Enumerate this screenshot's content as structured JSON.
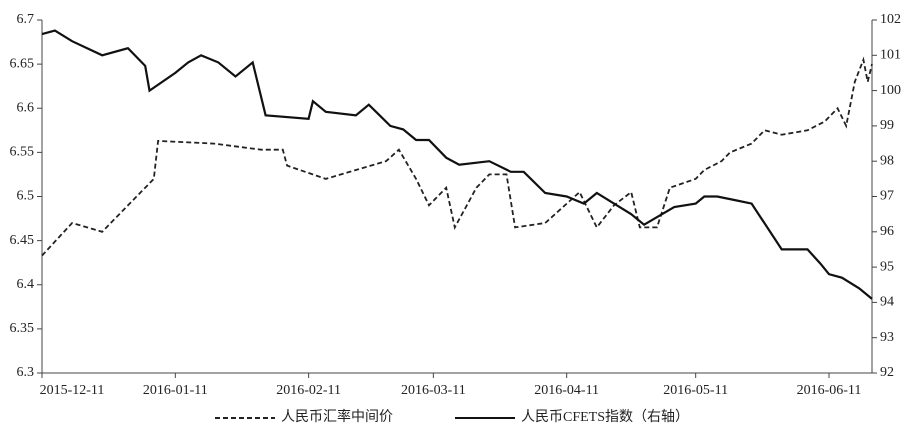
{
  "chart_data": {
    "type": "line",
    "xlim": [
      "2015-12-11",
      "2016-06-21"
    ],
    "xticks": [
      "2015-12-11",
      "2016-01-11",
      "2016-02-11",
      "2016-03-11",
      "2016-04-11",
      "2016-05-11",
      "2016-06-11"
    ],
    "ylim": [
      6.3,
      6.7
    ],
    "yticks": [
      6.3,
      6.35,
      6.4,
      6.45,
      6.5,
      6.55,
      6.6,
      6.65,
      6.7
    ],
    "y2lim": [
      92,
      102
    ],
    "y2ticks": [
      92,
      93,
      94,
      95,
      96,
      97,
      98,
      99,
      100,
      101,
      102
    ],
    "legend": "bottom",
    "series": [
      {
        "name": "人民币汇率中间价",
        "color": "#222222",
        "dash": true,
        "x": [
          "2015-12-11",
          "2015-12-18",
          "2015-12-25",
          "2015-12-31",
          "2016-01-06",
          "2016-01-07",
          "2016-01-20",
          "2016-01-31",
          "2016-02-05",
          "2016-02-06",
          "2016-02-15",
          "2016-02-22",
          "2016-02-29",
          "2016-03-03",
          "2016-03-07",
          "2016-03-10",
          "2016-03-14",
          "2016-03-16",
          "2016-03-21",
          "2016-03-24",
          "2016-03-28",
          "2016-03-30",
          "2016-04-06",
          "2016-04-14",
          "2016-04-18",
          "2016-04-22",
          "2016-04-26",
          "2016-04-28",
          "2016-05-02",
          "2016-05-05",
          "2016-05-11",
          "2016-05-13",
          "2016-05-17",
          "2016-05-19",
          "2016-05-24",
          "2016-05-27",
          "2016-05-31",
          "2016-06-06",
          "2016-06-10",
          "2016-06-13",
          "2016-06-15",
          "2016-06-17",
          "2016-06-19",
          "2016-06-20",
          "2016-06-21"
        ],
        "values": [
          6.433,
          6.47,
          6.46,
          6.49,
          6.52,
          6.563,
          6.56,
          6.553,
          6.553,
          6.535,
          6.52,
          6.53,
          6.54,
          6.553,
          6.52,
          6.49,
          6.51,
          6.465,
          6.51,
          6.525,
          6.525,
          6.465,
          6.47,
          6.505,
          6.465,
          6.49,
          6.505,
          6.465,
          6.465,
          6.51,
          6.52,
          6.53,
          6.54,
          6.55,
          6.56,
          6.575,
          6.57,
          6.575,
          6.585,
          6.6,
          6.58,
          6.63,
          6.655,
          6.63,
          6.65
        ]
      },
      {
        "name": "人民币CFETS指数（右轴）",
        "color": "#111111",
        "dash": false,
        "axis": "y2",
        "x": [
          "2015-12-11",
          "2015-12-14",
          "2015-12-18",
          "2015-12-25",
          "2015-12-31",
          "2016-01-04",
          "2016-01-05",
          "2016-01-11",
          "2016-01-14",
          "2016-01-17",
          "2016-01-21",
          "2016-01-25",
          "2016-01-29",
          "2016-02-01",
          "2016-02-11",
          "2016-02-12",
          "2016-02-15",
          "2016-02-22",
          "2016-02-25",
          "2016-03-01",
          "2016-03-04",
          "2016-03-07",
          "2016-03-10",
          "2016-03-14",
          "2016-03-17",
          "2016-03-24",
          "2016-03-29",
          "2016-04-01",
          "2016-04-06",
          "2016-04-11",
          "2016-04-15",
          "2016-04-18",
          "2016-04-26",
          "2016-04-29",
          "2016-05-06",
          "2016-05-11",
          "2016-05-13",
          "2016-05-16",
          "2016-05-20",
          "2016-05-24",
          "2016-05-31",
          "2016-06-06",
          "2016-06-09",
          "2016-06-11",
          "2016-06-14",
          "2016-06-18",
          "2016-06-21"
        ],
        "values": [
          101.6,
          101.7,
          101.4,
          101.0,
          101.2,
          100.7,
          100.0,
          100.5,
          100.8,
          101.0,
          100.8,
          100.4,
          100.8,
          99.3,
          99.2,
          99.7,
          99.4,
          99.3,
          99.6,
          99.0,
          98.9,
          98.6,
          98.6,
          98.1,
          97.9,
          98.0,
          97.7,
          97.7,
          97.1,
          97.0,
          96.8,
          97.1,
          96.5,
          96.2,
          96.7,
          96.8,
          97.0,
          97.0,
          96.9,
          96.8,
          95.5,
          95.5,
          95.1,
          94.8,
          94.7,
          94.4,
          94.1
        ]
      }
    ]
  }
}
